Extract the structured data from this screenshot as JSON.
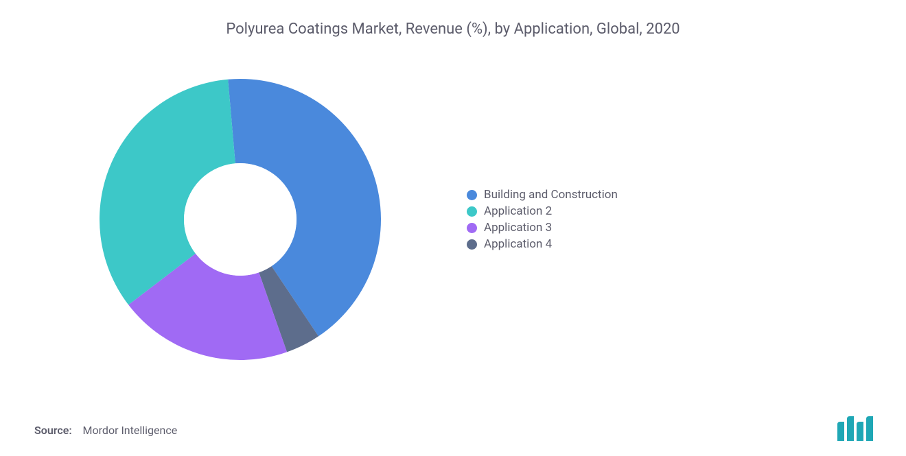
{
  "title": {
    "text": "Polyurea Coatings Market, Revenue (%), by Application, Global, 2020",
    "fontsize": 22,
    "color": "#5c5c6b"
  },
  "chart": {
    "type": "donut",
    "start_angle_deg": -95,
    "direction": "clockwise",
    "outer_radius": 205,
    "inner_radius": 82,
    "hole_color": "#ffffff",
    "background_color": "#ffffff",
    "segments": [
      {
        "name": "Building and Construction",
        "value": 42,
        "color": "#4a89dc"
      },
      {
        "name": "Application 4",
        "value": 4,
        "color": "#5d6d8c"
      },
      {
        "name": "Application 3",
        "value": 20,
        "color": "#a06af4"
      },
      {
        "name": "Application 2",
        "value": 34,
        "color": "#3dc8c8"
      }
    ]
  },
  "legend": {
    "text_color": "#5c5c6b",
    "fontsize": 17,
    "items": [
      {
        "label": "Building and Construction",
        "color": "#4a89dc"
      },
      {
        "label": "Application 2",
        "color": "#3dc8c8"
      },
      {
        "label": "Application 3",
        "color": "#a06af4"
      },
      {
        "label": "Application 4",
        "color": "#5d6d8c"
      }
    ]
  },
  "source": {
    "prefix": "Source:",
    "text": "Mordor Intelligence",
    "color": "#5c5c6b"
  },
  "logo": {
    "fill": "#1fa7b5",
    "width": 54,
    "height": 36
  }
}
